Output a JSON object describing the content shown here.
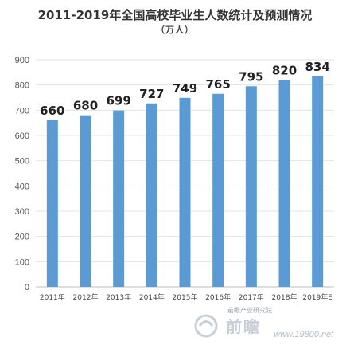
{
  "chart_data": {
    "type": "bar",
    "title": "2011-2019年全国高校毕业生人数统计及预测情况",
    "subtitle": "（万人）",
    "categories": [
      "2011年",
      "2012年",
      "2013年",
      "2014年",
      "2015年",
      "2016年",
      "2017年",
      "2018年",
      "2019年E"
    ],
    "values": [
      660,
      680,
      699,
      727,
      749,
      765,
      795,
      820,
      834
    ],
    "ylim": [
      0,
      900
    ],
    "yticks": [
      0,
      100,
      200,
      300,
      400,
      500,
      600,
      700,
      800,
      900
    ],
    "grid": true,
    "legend": "none",
    "bar_color": "#5b9bd5"
  },
  "watermark": {
    "credit": "前瞻产业研究院",
    "logo": "前瞻",
    "site": "www.19800.net"
  }
}
